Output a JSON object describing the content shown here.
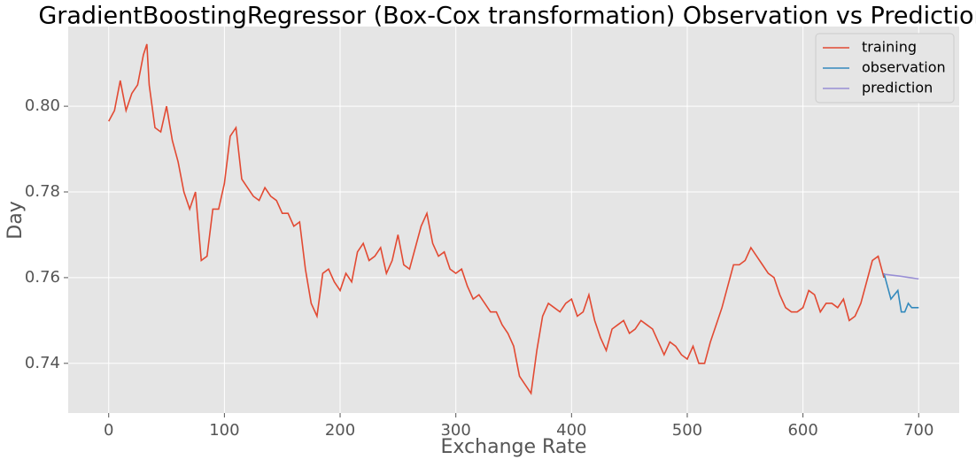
{
  "chart_data": {
    "type": "line",
    "title": "GradientBoostingRegressor (Box-Cox transformation) Observation vs Prediction",
    "x_label": "Exchange Rate",
    "y_label": "Day",
    "xlim": [
      -35,
      735
    ],
    "ylim": [
      0.7284,
      0.8186
    ],
    "xticks": [
      0,
      100,
      200,
      300,
      400,
      500,
      600,
      700
    ],
    "yticks": [
      0.74,
      0.76,
      0.78,
      {
        "value": 0.8,
        "label": "0.80"
      }
    ],
    "grid": true,
    "legend": "upper-right",
    "series": [
      {
        "name": "training",
        "color": "#e24a33",
        "x": [
          0,
          5,
          10,
          15,
          20,
          25,
          30,
          33,
          35,
          40,
          45,
          50,
          55,
          60,
          65,
          70,
          75,
          80,
          85,
          90,
          95,
          100,
          105,
          110,
          115,
          120,
          125,
          130,
          135,
          140,
          145,
          150,
          155,
          160,
          165,
          170,
          175,
          180,
          185,
          190,
          195,
          200,
          205,
          210,
          215,
          220,
          225,
          230,
          235,
          240,
          245,
          250,
          255,
          260,
          265,
          270,
          275,
          280,
          285,
          290,
          295,
          300,
          305,
          310,
          315,
          320,
          325,
          330,
          335,
          340,
          345,
          350,
          355,
          360,
          365,
          370,
          375,
          380,
          385,
          390,
          395,
          400,
          405,
          410,
          415,
          420,
          425,
          430,
          435,
          440,
          445,
          450,
          455,
          460,
          465,
          470,
          475,
          480,
          485,
          490,
          495,
          500,
          505,
          510,
          515,
          520,
          525,
          530,
          535,
          540,
          545,
          550,
          555,
          560,
          565,
          570,
          575,
          580,
          585,
          590,
          595,
          600,
          605,
          610,
          615,
          620,
          625,
          630,
          635,
          640,
          645,
          650,
          655,
          660,
          665,
          670
        ],
        "values": [
          0.7965,
          0.799,
          0.806,
          0.799,
          0.803,
          0.805,
          0.812,
          0.8145,
          0.805,
          0.795,
          0.794,
          0.8,
          0.792,
          0.787,
          0.78,
          0.776,
          0.78,
          0.764,
          0.765,
          0.776,
          0.776,
          0.782,
          0.793,
          0.795,
          0.783,
          0.781,
          0.779,
          0.778,
          0.781,
          0.779,
          0.778,
          0.775,
          0.775,
          0.772,
          0.773,
          0.762,
          0.754,
          0.751,
          0.761,
          0.762,
          0.759,
          0.757,
          0.761,
          0.759,
          0.766,
          0.768,
          0.764,
          0.765,
          0.767,
          0.761,
          0.764,
          0.77,
          0.763,
          0.762,
          0.767,
          0.772,
          0.775,
          0.768,
          0.765,
          0.766,
          0.762,
          0.761,
          0.762,
          0.758,
          0.755,
          0.756,
          0.754,
          0.752,
          0.752,
          0.749,
          0.747,
          0.744,
          0.737,
          0.735,
          0.733,
          0.743,
          0.751,
          0.754,
          0.753,
          0.752,
          0.754,
          0.755,
          0.751,
          0.752,
          0.756,
          0.75,
          0.746,
          0.743,
          0.748,
          0.749,
          0.75,
          0.747,
          0.748,
          0.75,
          0.749,
          0.748,
          0.745,
          0.742,
          0.745,
          0.744,
          0.742,
          0.741,
          0.744,
          0.74,
          0.74,
          0.745,
          0.749,
          0.753,
          0.758,
          0.763,
          0.763,
          0.764,
          0.767,
          0.765,
          0.763,
          0.761,
          0.76,
          0.756,
          0.753,
          0.752,
          0.752,
          0.753,
          0.757,
          0.756,
          0.752,
          0.754,
          0.754,
          0.753,
          0.755,
          0.75,
          0.751,
          0.754,
          0.759,
          0.764,
          0.765,
          0.76
        ]
      },
      {
        "name": "observation",
        "color": "#348abd",
        "x": [
          670,
          673,
          676,
          679,
          682,
          685,
          688,
          691,
          694,
          697,
          700
        ],
        "values": [
          0.761,
          0.758,
          0.755,
          0.756,
          0.757,
          0.752,
          0.752,
          0.754,
          0.753,
          0.753,
          0.753
        ]
      },
      {
        "name": "prediction",
        "color": "#988ed5",
        "x": [
          670,
          685,
          700
        ],
        "values": [
          0.7608,
          0.7603,
          0.7597
        ]
      }
    ]
  }
}
